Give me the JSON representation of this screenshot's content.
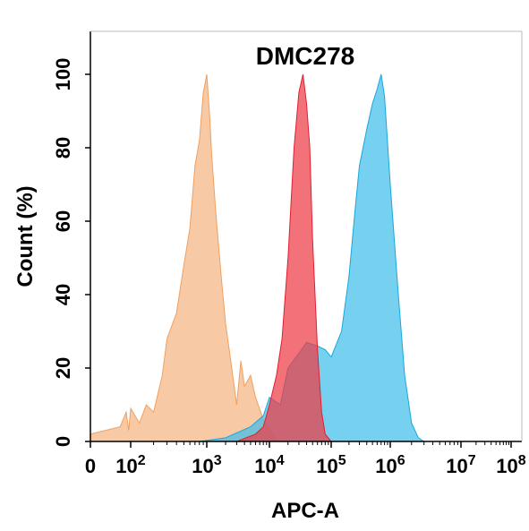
{
  "chart_data": {
    "type": "area",
    "title": "DMC278",
    "xlabel": "APC-A",
    "ylabel": "Count  (%)",
    "xscale": "log",
    "xlim": [
      0,
      100000000
    ],
    "ylim": [
      0,
      100
    ],
    "x_ticks": [
      {
        "label": "0",
        "sup": ""
      },
      {
        "label": "10",
        "sup": "2"
      },
      {
        "label": "10",
        "sup": "3"
      },
      {
        "label": "10",
        "sup": "4"
      },
      {
        "label": "10",
        "sup": "5"
      },
      {
        "label": "10",
        "sup": "6"
      },
      {
        "label": "10",
        "sup": "7"
      },
      {
        "label": "10",
        "sup": "8"
      }
    ],
    "y_ticks": [
      "0",
      "20",
      "40",
      "60",
      "80",
      "100"
    ],
    "grid": false,
    "series": [
      {
        "color": "#F5B482",
        "stroke": "#F0A060",
        "points": [
          [
            1,
            2
          ],
          [
            30,
            4
          ],
          [
            60,
            8
          ],
          [
            80,
            3
          ],
          [
            100,
            9
          ],
          [
            130,
            5
          ],
          [
            160,
            10
          ],
          [
            200,
            8
          ],
          [
            260,
            18
          ],
          [
            300,
            28
          ],
          [
            400,
            35
          ],
          [
            500,
            48
          ],
          [
            600,
            58
          ],
          [
            700,
            75
          ],
          [
            800,
            82
          ],
          [
            900,
            95
          ],
          [
            1000,
            100
          ],
          [
            1100,
            90
          ],
          [
            1200,
            78
          ],
          [
            1400,
            62
          ],
          [
            1700,
            45
          ],
          [
            2000,
            32
          ],
          [
            2500,
            20
          ],
          [
            3000,
            10
          ],
          [
            3500,
            22
          ],
          [
            4000,
            15
          ],
          [
            5000,
            18
          ],
          [
            6000,
            12
          ],
          [
            8000,
            6
          ],
          [
            10000,
            3
          ],
          [
            12000,
            1
          ],
          [
            15000,
            0
          ]
        ]
      },
      {
        "color": "#41BEEA",
        "stroke": "#1AA7DC",
        "points": [
          [
            800,
            0
          ],
          [
            2000,
            1
          ],
          [
            5000,
            4
          ],
          [
            8000,
            7
          ],
          [
            10000,
            12
          ],
          [
            15000,
            10
          ],
          [
            20000,
            20
          ],
          [
            30000,
            24
          ],
          [
            40000,
            27
          ],
          [
            60000,
            26
          ],
          [
            80000,
            25
          ],
          [
            100000,
            23
          ],
          [
            150000,
            30
          ],
          [
            200000,
            45
          ],
          [
            250000,
            62
          ],
          [
            300000,
            75
          ],
          [
            400000,
            85
          ],
          [
            500000,
            92
          ],
          [
            600000,
            96
          ],
          [
            700000,
            100
          ],
          [
            800000,
            94
          ],
          [
            1000000,
            70
          ],
          [
            1300000,
            40
          ],
          [
            1600000,
            18
          ],
          [
            2000000,
            5
          ],
          [
            2500000,
            1
          ],
          [
            3000000,
            0
          ]
        ]
      },
      {
        "color": "#EE3A44",
        "stroke": "#E02030",
        "points": [
          [
            3000,
            0
          ],
          [
            6000,
            2
          ],
          [
            8000,
            4
          ],
          [
            10000,
            10
          ],
          [
            13000,
            18
          ],
          [
            16000,
            28
          ],
          [
            20000,
            50
          ],
          [
            25000,
            80
          ],
          [
            30000,
            95
          ],
          [
            35000,
            100
          ],
          [
            40000,
            92
          ],
          [
            45000,
            80
          ],
          [
            50000,
            55
          ],
          [
            60000,
            25
          ],
          [
            70000,
            8
          ],
          [
            80000,
            2
          ],
          [
            100000,
            0
          ]
        ]
      }
    ]
  }
}
